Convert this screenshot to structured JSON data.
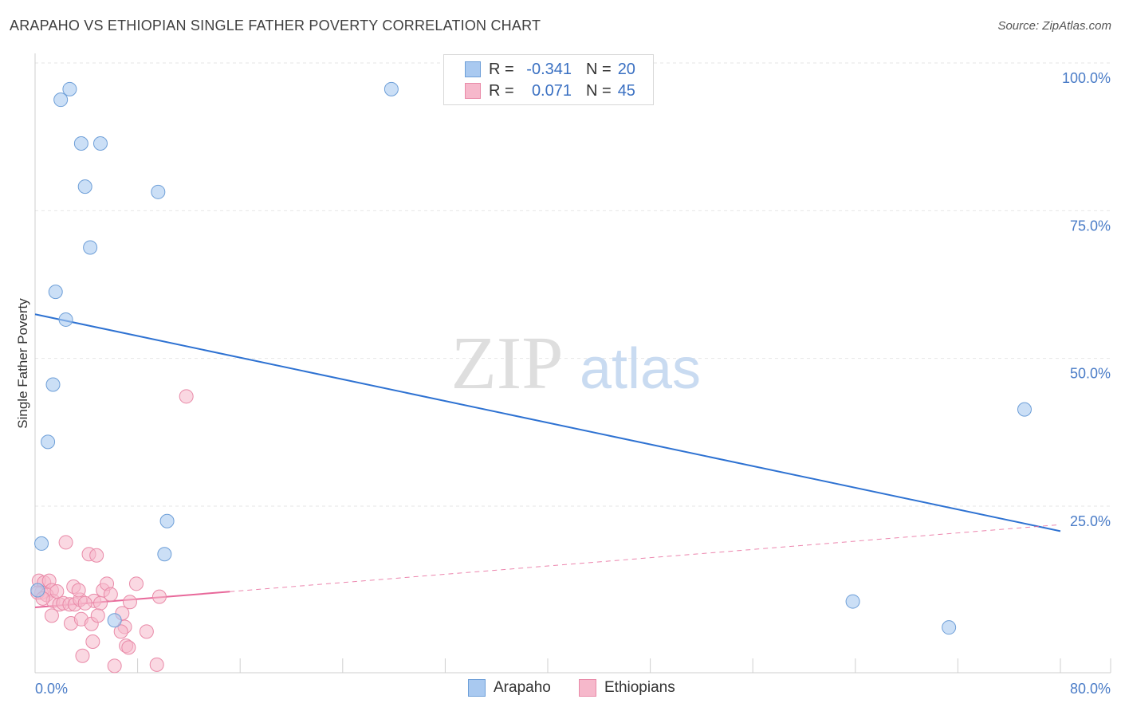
{
  "title": "ARAPAHO VS ETHIOPIAN SINGLE FATHER POVERTY CORRELATION CHART",
  "source": "Source: ZipAtlas.com",
  "colors": {
    "arapaho": "#a9c9f0",
    "arapaho_edge": "#6e9fd8",
    "arapaho_line": "#2e72d2",
    "ethiopian": "#f6b8cb",
    "ethiopian_edge": "#e98aa8",
    "ethiopian_line": "#e8689a",
    "tick_label": "#4a7cc7"
  },
  "legend": {
    "rows": [
      {
        "r_label": "R =",
        "r_value": "-0.341",
        "n_label": "N =",
        "n_value": "20"
      },
      {
        "r_label": "R =",
        "r_value": "0.071",
        "n_label": "N =",
        "n_value": "45"
      }
    ]
  },
  "bottom_legend": [
    "Arapaho",
    "Ethiopians"
  ],
  "watermark": {
    "zip": "ZIP",
    "atlas": "atlas"
  },
  "chart_data": {
    "type": "scatter",
    "xlabel": "",
    "ylabel": "Single Father Poverty",
    "xlim": [
      0,
      80
    ],
    "ylim": [
      0,
      100
    ],
    "x_tick_labels": [
      "0.0%",
      "80.0%"
    ],
    "y_tick_labels": [
      "100.0%",
      "75.0%",
      "50.0%",
      "25.0%"
    ],
    "y_ticks": [
      100,
      75,
      50,
      25
    ],
    "grid": true,
    "legend_position": "top-center",
    "series": [
      {
        "name": "Arapaho",
        "points": [
          [
            2.7,
            98
          ],
          [
            2.0,
            96.2
          ],
          [
            3.6,
            88.8
          ],
          [
            5.1,
            88.8
          ],
          [
            3.9,
            81.5
          ],
          [
            9.6,
            80.6
          ],
          [
            4.3,
            71.2
          ],
          [
            1.6,
            63.7
          ],
          [
            2.4,
            59
          ],
          [
            1.4,
            48
          ],
          [
            1.0,
            38.3
          ],
          [
            27.8,
            98
          ],
          [
            77.2,
            43.8
          ],
          [
            10.3,
            24.9
          ],
          [
            10.1,
            19.3
          ],
          [
            0.5,
            21.1
          ],
          [
            6.2,
            8.1
          ],
          [
            63.8,
            11.3
          ],
          [
            71.3,
            6.9
          ],
          [
            0.2,
            13.2
          ]
        ],
        "trend": {
          "x": [
            0,
            80
          ],
          "y": [
            59.9,
            23.2
          ]
        }
      },
      {
        "name": "Ethiopians",
        "points": [
          [
            11.8,
            46
          ],
          [
            2.4,
            21.3
          ],
          [
            4.2,
            19.3
          ],
          [
            4.8,
            19.1
          ],
          [
            0.3,
            14.8
          ],
          [
            0.7,
            14.5
          ],
          [
            1.1,
            14.8
          ],
          [
            1.3,
            13.2
          ],
          [
            0.5,
            12.8
          ],
          [
            0.2,
            12.8
          ],
          [
            0.9,
            12.4
          ],
          [
            1.4,
            11.4
          ],
          [
            1.9,
            10.8
          ],
          [
            2.2,
            11.0
          ],
          [
            2.7,
            10.8
          ],
          [
            3.1,
            10.8
          ],
          [
            3.5,
            11.6
          ],
          [
            3.0,
            13.8
          ],
          [
            3.4,
            13.2
          ],
          [
            4.6,
            11.4
          ],
          [
            5.1,
            11.0
          ],
          [
            5.3,
            13.2
          ],
          [
            5.6,
            14.3
          ],
          [
            5.9,
            12.5
          ],
          [
            7.4,
            11.2
          ],
          [
            7.9,
            14.3
          ],
          [
            9.7,
            12.1
          ],
          [
            1.3,
            8.9
          ],
          [
            2.8,
            7.6
          ],
          [
            3.6,
            8.3
          ],
          [
            4.4,
            7.5
          ],
          [
            4.9,
            8.9
          ],
          [
            6.8,
            9.3
          ],
          [
            7.0,
            7.0
          ],
          [
            8.7,
            6.2
          ],
          [
            6.7,
            6.2
          ],
          [
            4.5,
            4.5
          ],
          [
            7.1,
            3.8
          ],
          [
            7.3,
            3.5
          ],
          [
            3.7,
            2.1
          ],
          [
            6.2,
            0.4
          ],
          [
            9.5,
            0.6
          ],
          [
            0.6,
            11.8
          ],
          [
            1.7,
            13.0
          ],
          [
            3.9,
            11.0
          ]
        ],
        "trend": {
          "x": [
            0,
            80
          ],
          "y": [
            10.3,
            24.3
          ],
          "solid_until": 15.2
        }
      }
    ]
  }
}
